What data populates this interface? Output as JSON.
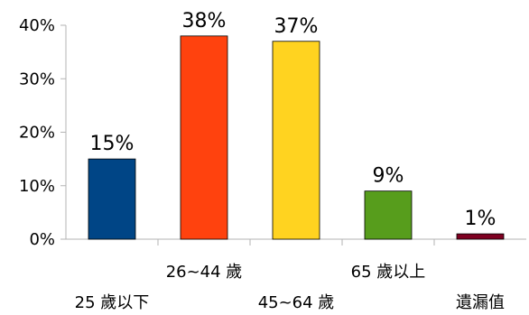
{
  "chart_data": {
    "type": "bar",
    "categories": [
      "25 歲以下",
      "26~44 歲",
      "45~64 歲",
      "65 歲以上",
      "遺漏值"
    ],
    "values": [
      15,
      38,
      37,
      9,
      1
    ],
    "data_labels": [
      "15%",
      "38%",
      "37%",
      "9%",
      "1%"
    ],
    "colors": [
      "#004586",
      "#ff420e",
      "#ffd320",
      "#579d1c",
      "#7e0021"
    ],
    "ylim": [
      0,
      40
    ],
    "yticks": [
      0,
      10,
      20,
      30,
      40
    ],
    "ytick_labels": [
      "0%",
      "10%",
      "20%",
      "30%",
      "40%"
    ],
    "grid": false,
    "legend": "none"
  }
}
